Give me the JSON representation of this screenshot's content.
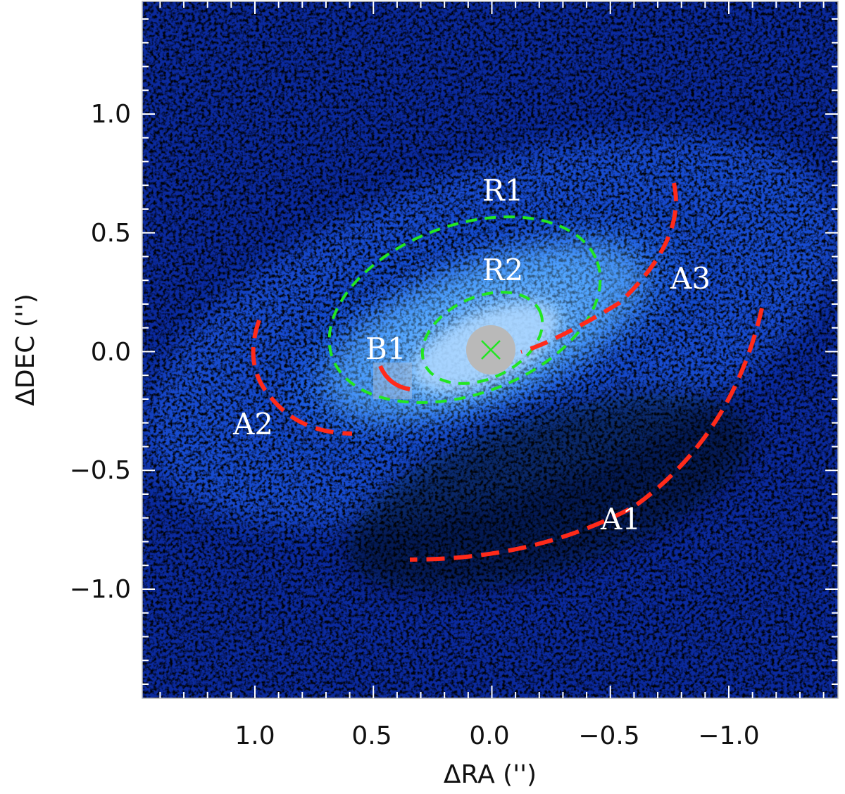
{
  "figure": {
    "xlabel": "ΔRA ('')",
    "ylabel": "ΔDEC ('')",
    "x_tick_labels": [
      "1.0",
      "0.5",
      "0.0",
      "−0.5",
      "−1.0"
    ],
    "y_tick_labels": [
      "1.0",
      "0.5",
      "0.0",
      "−0.5",
      "−1.0"
    ],
    "colors": {
      "background_dark": "#000000",
      "emission_blue": "#1e6cff",
      "emission_bright": "#ffffff",
      "ellipse_green": "#22e622",
      "arc_red": "#ff2a1a",
      "mask_gray": "#b9b9b9",
      "label_white": "#ffffff"
    },
    "labels": {
      "r1": "R1",
      "r2": "R2",
      "b1": "B1",
      "a1": "A1",
      "a2": "A2",
      "a3": "A3"
    },
    "center_marker": "x-mark"
  }
}
